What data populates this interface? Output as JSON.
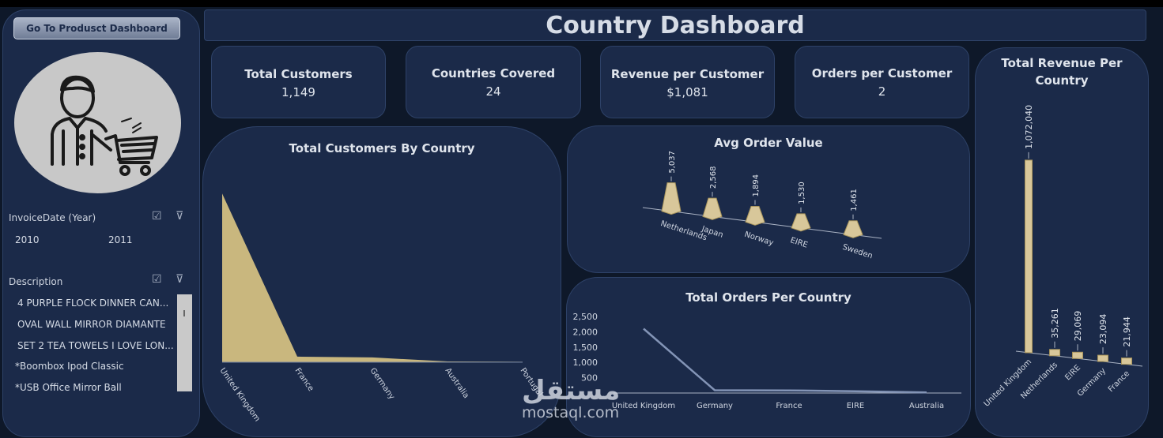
{
  "header": {
    "title": "Country Dashboard"
  },
  "nav": {
    "go_button": "Go To Produsct Dashboard"
  },
  "slicers": {
    "invoice_year": {
      "label": "InvoiceDate (Year)",
      "items": [
        "2010",
        "2011"
      ]
    },
    "description": {
      "label": "Description",
      "items": [
        "4 PURPLE FLOCK DINNER CAN...",
        "OVAL WALL MIRROR DIAMANTE",
        "SET 2 TEA TOWELS I LOVE LON...",
        "*Boombox Ipod Classic",
        "*USB Office Mirror Ball"
      ]
    }
  },
  "kpis": [
    {
      "title": "Total Customers",
      "value": "1,149"
    },
    {
      "title": "Countries Covered",
      "value": "24"
    },
    {
      "title": "Revenue per Customer",
      "value": "$1,081"
    },
    {
      "title": "Orders per Customer",
      "value": "2"
    }
  ],
  "charts": {
    "customers_by_country": {
      "title": "Total Customers By Country"
    },
    "avg_order_value": {
      "title": "Avg Order Value"
    },
    "orders_per_country": {
      "title": "Total Orders Per Country"
    },
    "revenue_per_country": {
      "title": "Total Revenue Per Country"
    }
  },
  "chart_data": [
    {
      "type": "area",
      "title": "Total Customers By Country",
      "categories": [
        "United Kingdom",
        "France",
        "Germany",
        "Australia",
        "Portugal"
      ],
      "values": [
        1050,
        35,
        30,
        5,
        3
      ],
      "ylim": [
        0,
        1150
      ],
      "color": "#c9b77e"
    },
    {
      "type": "bar",
      "title": "Avg Order Value",
      "categories": [
        "Netherlands",
        "Japan",
        "Norway",
        "EIRE",
        "Sweden"
      ],
      "values": [
        5037,
        2568,
        1894,
        1530,
        1461
      ],
      "data_labels": [
        "5,037",
        "2,568",
        "1,894",
        "1,530",
        "1,461"
      ],
      "color": "#d8c79a"
    },
    {
      "type": "line",
      "title": "Total Orders Per Country",
      "categories": [
        "United Kingdom",
        "Germany",
        "France",
        "EIRE",
        "Australia"
      ],
      "values": [
        2100,
        90,
        85,
        60,
        20
      ],
      "yticks": [
        "2,500",
        "2,000",
        "1,500",
        "1,000",
        "500"
      ],
      "ylim": [
        0,
        2500
      ],
      "color": "#8394b6"
    },
    {
      "type": "bar",
      "title": "Total Revenue Per Country",
      "categories": [
        "United Kingdom",
        "Netherlands",
        "EIRE",
        "Germany",
        "France"
      ],
      "values": [
        1072040,
        35261,
        29069,
        23094,
        21944
      ],
      "data_labels": [
        "1,072,040",
        "35,261",
        "29,069",
        "23,094",
        "21,944"
      ],
      "color": "#d8c79a"
    }
  ],
  "watermark": {
    "arabic": "مستقل",
    "latin": "mostaql.com"
  }
}
